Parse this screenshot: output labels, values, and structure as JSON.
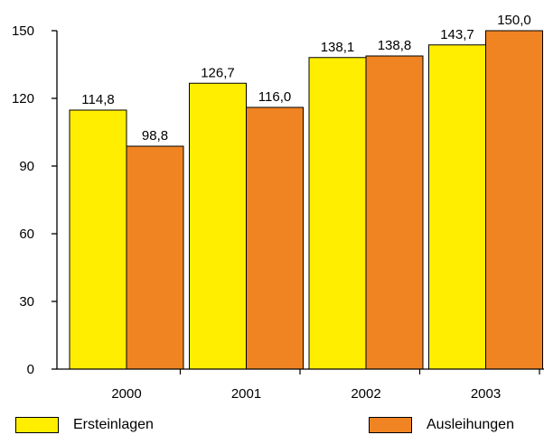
{
  "chart_data": {
    "type": "bar",
    "categories": [
      "2000",
      "2001",
      "2002",
      "2003"
    ],
    "series": [
      {
        "name": "Ersteinlagen",
        "values": [
          114.8,
          126.7,
          138.1,
          143.7
        ],
        "labels": [
          "114,8",
          "126,7",
          "138,1",
          "143,7"
        ],
        "color": "#ffee00"
      },
      {
        "name": "Ausleihungen",
        "values": [
          98.8,
          116.0,
          138.8,
          150.0
        ],
        "labels": [
          "98,8",
          "116,0",
          "138,8",
          "150,0"
        ],
        "color": "#f08322"
      }
    ],
    "yticks": [
      "0",
      "30",
      "60",
      "90",
      "120",
      "150"
    ],
    "ylim": [
      0,
      150
    ],
    "grid": false,
    "legend_position": "bottom"
  }
}
